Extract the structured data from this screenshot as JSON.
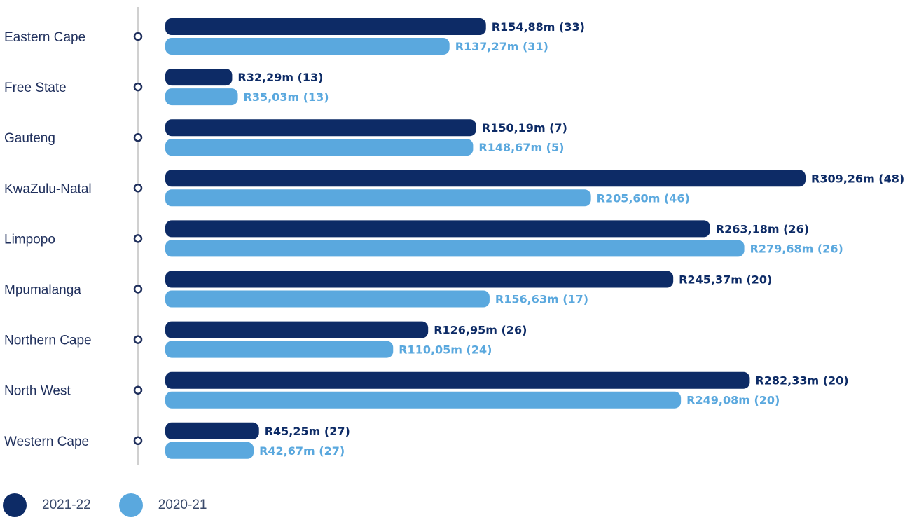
{
  "chart_data": {
    "type": "bar",
    "orientation": "horizontal",
    "categories": [
      "Eastern Cape",
      "Free State",
      "Gauteng",
      "KwaZulu-Natal",
      "Limpopo",
      "Mpumalanga",
      "Northern Cape",
      "North West",
      "Western Cape"
    ],
    "series": [
      {
        "name": "2021-22",
        "color": "#0d2b66",
        "values": [
          154.88,
          32.29,
          150.19,
          309.26,
          263.18,
          245.37,
          126.95,
          282.33,
          45.25
        ],
        "labels": [
          "R154,88m (33)",
          "R32,29m (13)",
          "R150,19m (7)",
          "R309,26m (48)",
          "R263,18m (26)",
          "R245,37m (20)",
          "R126,95m (26)",
          "R282,33m (20)",
          "R45,25m (27)"
        ]
      },
      {
        "name": "2020-21",
        "color": "#5aa8de",
        "values": [
          137.27,
          35.03,
          148.67,
          205.6,
          279.68,
          156.63,
          110.05,
          249.08,
          42.67
        ],
        "labels": [
          "R137,27m (31)",
          "R35,03m (13)",
          "R148,67m (5)",
          "R205,60m (46)",
          "R279,68m (26)",
          "R156,63m (17)",
          "R110,05m (24)",
          "R249,08m (20)",
          "R42,67m (27)"
        ]
      }
    ],
    "xlim": [
      0,
      309.26
    ],
    "grid": false,
    "legend_position": "bottom-left"
  },
  "colors": {
    "axis": "#d0d0d0",
    "marker_stroke": "#1f2f5c",
    "label_text": "#1f2f5c"
  }
}
